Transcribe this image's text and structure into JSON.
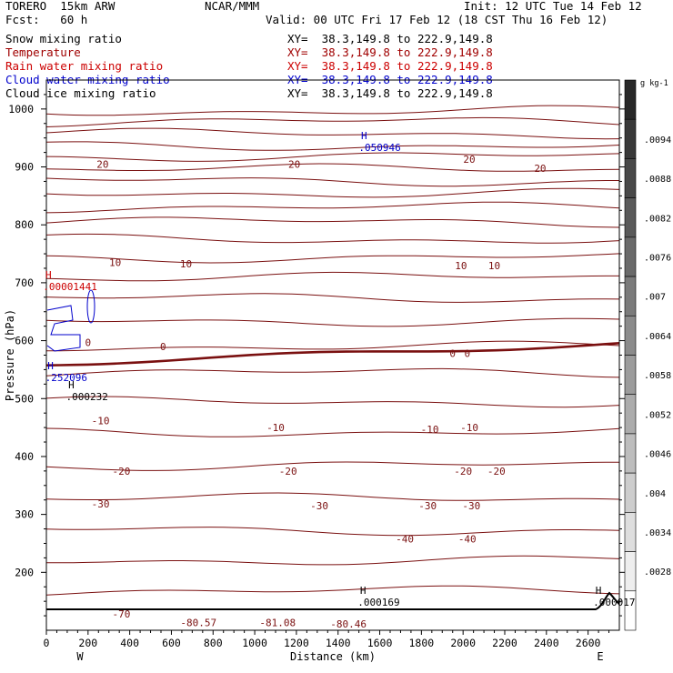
{
  "header": {
    "model": "TORERO  15km ARW",
    "org": "NCAR/MMM",
    "init": "Init: 12 UTC Tue 14 Feb 12",
    "fcst": "Fcst:   60 h",
    "valid": "Valid: 00 UTC Fri 17 Feb 12 (18 CST Thu 16 Feb 12)"
  },
  "fields": [
    {
      "name": "Snow mixing ratio",
      "xy": "XY=  38.3,149.8 to 222.9,149.8",
      "color": "#000000"
    },
    {
      "name": "Temperature",
      "xy": "XY=  38.3,149.8 to 222.9,149.8",
      "color": "#a00000"
    },
    {
      "name": "Rain water mixing ratio",
      "xy": "XY=  38.3,149.8 to 222.9,149.8",
      "color": "#cc0000"
    },
    {
      "name": "Cloud water mixing ratio",
      "xy": "XY=  38.3,149.8 to 222.9,149.8",
      "color": "#0000cc"
    },
    {
      "name": "Cloud ice mixing ratio",
      "xy": "XY=  38.3,149.8 to 222.9,149.8",
      "color": "#000000"
    }
  ],
  "chart_data": {
    "type": "contour",
    "xlabel": "Distance (km)",
    "ylabel": "Pressure (hPa)",
    "xlim": [
      0,
      2750
    ],
    "ylim": [
      1050,
      100
    ],
    "x_ticks": [
      0,
      200,
      400,
      600,
      800,
      1000,
      1200,
      1400,
      1600,
      1800,
      2000,
      2200,
      2400,
      2600
    ],
    "y_ticks": [
      200,
      300,
      400,
      500,
      600,
      700,
      800,
      900,
      1000
    ],
    "x_end_labels": {
      "left": "W",
      "right": "E"
    },
    "colorbar": {
      "unit": "g kg-1",
      "labels": [
        ".0094",
        ".0088",
        ".0082",
        ".0076",
        ".007",
        ".0064",
        ".0058",
        ".0052",
        ".0046",
        ".004",
        ".0034",
        ".0028"
      ]
    },
    "isotherm_labels": [
      {
        "text": "-80.57",
        "x": 730,
        "p": 113
      },
      {
        "text": "-81.08",
        "x": 1110,
        "p": 113
      },
      {
        "text": "-80.46",
        "x": 1450,
        "p": 111
      },
      {
        "text": "-70",
        "x": 360,
        "p": 128
      },
      {
        "text": "-40",
        "x": 1720,
        "p": 258
      },
      {
        "text": "-40",
        "x": 2020,
        "p": 258
      },
      {
        "text": "-30",
        "x": 260,
        "p": 318
      },
      {
        "text": "-30",
        "x": 1310,
        "p": 315
      },
      {
        "text": "-30",
        "x": 1830,
        "p": 315
      },
      {
        "text": "-30",
        "x": 2040,
        "p": 315
      },
      {
        "text": "-20",
        "x": 360,
        "p": 375
      },
      {
        "text": "-20",
        "x": 1160,
        "p": 375
      },
      {
        "text": "-20",
        "x": 2000,
        "p": 375
      },
      {
        "text": "-20",
        "x": 2160,
        "p": 375
      },
      {
        "text": "-10",
        "x": 260,
        "p": 462
      },
      {
        "text": "-10",
        "x": 1100,
        "p": 450
      },
      {
        "text": "-10",
        "x": 1840,
        "p": 447
      },
      {
        "text": "-10",
        "x": 2030,
        "p": 450
      },
      {
        "text": "0",
        "x": 200,
        "p": 597
      },
      {
        "text": "0",
        "x": 560,
        "p": 590
      },
      {
        "text": "0",
        "x": 1950,
        "p": 578
      },
      {
        "text": "0",
        "x": 2020,
        "p": 578
      },
      {
        "text": "10",
        "x": 330,
        "p": 735
      },
      {
        "text": "10",
        "x": 670,
        "p": 733
      },
      {
        "text": "10",
        "x": 1990,
        "p": 730
      },
      {
        "text": "10",
        "x": 2150,
        "p": 730
      },
      {
        "text": "20",
        "x": 270,
        "p": 905
      },
      {
        "text": "20",
        "x": 1190,
        "p": 905
      },
      {
        "text": "20",
        "x": 2030,
        "p": 913
      },
      {
        "text": "20",
        "x": 2370,
        "p": 898
      }
    ],
    "extrema": [
      {
        "mark": "H",
        "value": ".000169",
        "x": 1520,
        "p": 150,
        "color": "#000000"
      },
      {
        "mark": "H",
        "value": ".000017",
        "x": 2650,
        "p": 150,
        "color": "#000000"
      },
      {
        "mark": "H",
        "value": ".000232",
        "x": 120,
        "p": 505,
        "color": "#000000"
      },
      {
        "mark": "H",
        "value": ".252096",
        "x": 20,
        "p": 538,
        "color": "#0000cc"
      },
      {
        "mark": "H",
        "value": ".00001441",
        "x": 10,
        "p": 695,
        "color": "#cc0000"
      },
      {
        "mark": "H",
        "value": ".050946",
        "x": 1525,
        "p": 935,
        "color": "#0000cc"
      }
    ]
  }
}
